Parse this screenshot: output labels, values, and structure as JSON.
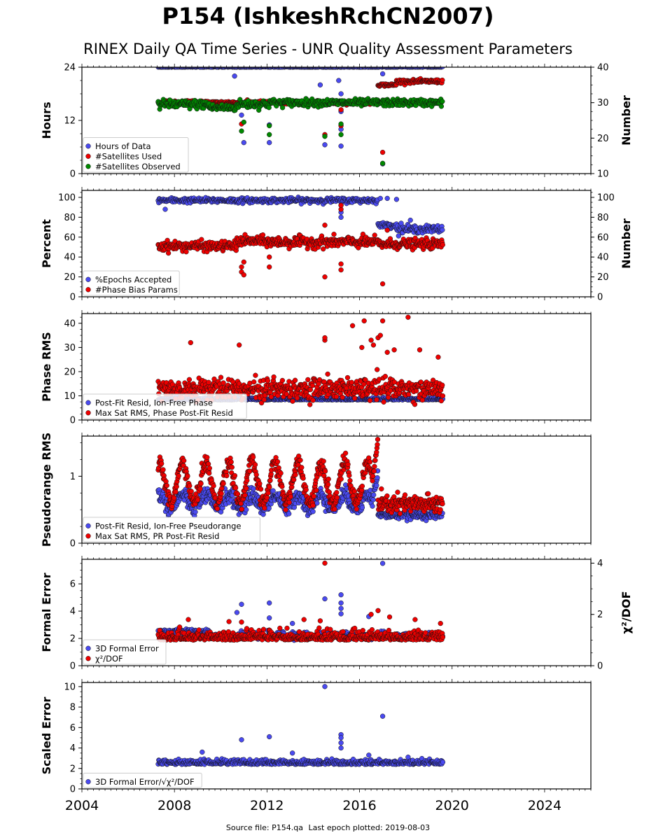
{
  "title": "P154 (IshkeshRchCN2007)",
  "subtitle": "RINEX Daily QA Time Series - UNR Quality Assessment Parameters",
  "footer": {
    "source_label": "Source file: P154.qa",
    "last_epoch_label": "Last epoch plotted: 2019-08-03"
  },
  "colors": {
    "blue": "#4a4af0",
    "red": "#ee0000",
    "green": "#008800",
    "dark_red": "#550000",
    "navy": "#101040"
  },
  "chart_data": [
    {
      "type": "scatter",
      "ylabel": "Hours",
      "ylabel_right": "Number",
      "xlim": [
        2004,
        2026
      ],
      "ylim": [
        0,
        24
      ],
      "ylim_right": [
        10,
        40
      ],
      "yticks": [
        0,
        12,
        24
      ],
      "yticks_right": [
        10,
        20,
        30,
        40
      ],
      "legend": [
        "Hours of Data",
        "#Satellites Used",
        "#Satellites Observed"
      ],
      "legend_placement": "lower-left",
      "data_range": [
        2007.3,
        2019.6
      ],
      "series": [
        {
          "name": "Hours of Data",
          "axis": "left",
          "color": "blue",
          "base": 24,
          "spread": 0.2,
          "outliers": [
            [
              2010.9,
              13.2
            ],
            [
              2011.0,
              7.0
            ],
            [
              2012.1,
              7.0
            ],
            [
              2012.1,
              11.0
            ],
            [
              2014.5,
              6.5
            ],
            [
              2015.2,
              6.2
            ],
            [
              2015.2,
              10.0
            ],
            [
              2015.2,
              14.0
            ],
            [
              2015.2,
              18.0
            ],
            [
              2015.1,
              21.0
            ],
            [
              2014.3,
              20.0
            ],
            [
              2010.6,
              22.0
            ],
            [
              2017.0,
              22.5
            ],
            [
              2017.0,
              2.2
            ]
          ]
        },
        {
          "name": "#Satellites Used",
          "axis": "right",
          "color": "red",
          "segments": [
            [
              2007.3,
              2016.8,
              30,
              0.4
            ],
            [
              2016.8,
              2017.6,
              35,
              0.3
            ],
            [
              2017.6,
              2019.6,
              36,
              0.4
            ]
          ],
          "outliers": [
            [
              2010.9,
              24.0
            ],
            [
              2014.5,
              21.0
            ],
            [
              2015.2,
              23.5
            ],
            [
              2015.2,
              28.0
            ],
            [
              2017.0,
              16.0
            ]
          ]
        },
        {
          "name": "#Satellites Observed",
          "axis": "right",
          "color": "green",
          "segments": [
            [
              2007.3,
              2009.5,
              29.5,
              1.0
            ],
            [
              2009.5,
              2010.7,
              28.6,
              0.8
            ],
            [
              2010.7,
              2012.1,
              29.6,
              1.0
            ],
            [
              2012.1,
              2019.6,
              30.0,
              0.8
            ]
          ],
          "outliers": [
            [
              2010.9,
              22.0
            ],
            [
              2011.0,
              24.5
            ],
            [
              2012.1,
              21.0
            ],
            [
              2012.1,
              23.5
            ],
            [
              2014.5,
              20.5
            ],
            [
              2015.2,
              21.0
            ],
            [
              2015.2,
              24.0
            ],
            [
              2017.0,
              12.9
            ]
          ]
        }
      ]
    },
    {
      "type": "scatter",
      "ylabel": "Percent",
      "ylabel_right": "Number",
      "xlim": [
        2004,
        2026
      ],
      "ylim": [
        0,
        107
      ],
      "ylim_right": [
        0,
        107
      ],
      "yticks": [
        0,
        20,
        40,
        60,
        80,
        100
      ],
      "yticks_right": [
        0,
        20,
        40,
        60,
        80,
        100
      ],
      "legend": [
        "%Epochs Accepted",
        "#Phase Bias Params"
      ],
      "legend_placement": "lower-left",
      "data_range": [
        2007.3,
        2019.6
      ],
      "series": [
        {
          "name": "%Epochs Accepted",
          "axis": "left",
          "color": "blue",
          "segments": [
            [
              2007.3,
              2016.8,
              97,
              2.0
            ],
            [
              2016.8,
              2017.6,
              72,
              2.0
            ],
            [
              2017.6,
              2019.6,
              68,
              3.0
            ]
          ],
          "outliers": [
            [
              2007.6,
              88
            ],
            [
              2015.2,
              92
            ],
            [
              2015.2,
              85
            ],
            [
              2015.2,
              80
            ],
            [
              2016.9,
              99
            ],
            [
              2017.2,
              99
            ],
            [
              2017.6,
              98
            ],
            [
              2018.2,
              77
            ],
            [
              2017.8,
              74
            ]
          ]
        },
        {
          "name": "#Phase Bias Params",
          "axis": "right",
          "color": "red",
          "segments": [
            [
              2007.3,
              2010.7,
              51,
              4.0
            ],
            [
              2010.7,
              2012.1,
              56,
              4.0
            ],
            [
              2012.1,
              2016.8,
              55,
              4.5
            ],
            [
              2016.8,
              2019.6,
              53,
              4.0
            ]
          ],
          "outliers": [
            [
              2010.9,
              30
            ],
            [
              2010.9,
              25
            ],
            [
              2011.0,
              22
            ],
            [
              2011.0,
              35
            ],
            [
              2012.1,
              30
            ],
            [
              2012.1,
              40
            ],
            [
              2014.5,
              20
            ],
            [
              2014.5,
              72
            ],
            [
              2015.2,
              27
            ],
            [
              2015.2,
              33
            ],
            [
              2015.2,
              88
            ],
            [
              2015.2,
              92
            ],
            [
              2017.0,
              13
            ],
            [
              2017.2,
              67
            ]
          ]
        }
      ]
    },
    {
      "type": "scatter",
      "ylabel": "Phase RMS",
      "xlim": [
        2004,
        2026
      ],
      "ylim": [
        0,
        44
      ],
      "yticks": [
        0,
        10,
        20,
        30,
        40
      ],
      "legend": [
        "Post-Fit Resid, Ion-Free Phase",
        "Max Sat RMS, Phase Post-Fit Resid"
      ],
      "legend_placement": "lower-left",
      "data_range": [
        2007.3,
        2019.6
      ],
      "series": [
        {
          "name": "Post-Fit Resid, Ion-Free Phase",
          "axis": "left",
          "color": "blue",
          "base": 8.3,
          "spread": 0.7,
          "outliers": []
        },
        {
          "name": "Max Sat RMS, Phase Post-Fit Resid",
          "axis": "left",
          "color": "red",
          "base": 13,
          "spread": 4.0,
          "outliers": [
            [
              2008.7,
              32
            ],
            [
              2010.8,
              31
            ],
            [
              2014.5,
              33
            ],
            [
              2014.5,
              34
            ],
            [
              2015.7,
              39
            ],
            [
              2016.1,
              30
            ],
            [
              2016.2,
              41
            ],
            [
              2016.5,
              33
            ],
            [
              2016.6,
              31
            ],
            [
              2016.8,
              34
            ],
            [
              2016.9,
              35
            ],
            [
              2017.0,
              41
            ],
            [
              2017.2,
              28
            ],
            [
              2017.5,
              29
            ],
            [
              2018.1,
              42.5
            ],
            [
              2018.6,
              29
            ],
            [
              2019.4,
              26
            ]
          ]
        }
      ]
    },
    {
      "type": "scatter",
      "ylabel": "Pseudorange RMS",
      "xlim": [
        2004,
        2026
      ],
      "ylim": [
        0,
        1.6
      ],
      "yticks": [
        0,
        1
      ],
      "legend": [
        "Post-Fit Resid, Ion-Free Pseudorange",
        "Max Sat RMS, PR Post-Fit Resid"
      ],
      "legend_placement": "lower-left",
      "data_range": [
        2007.3,
        2019.6
      ],
      "seasonal_break": 2016.8,
      "series": [
        {
          "name": "Post-Fit Resid, Ion-Free Pseudorange",
          "axis": "left",
          "color": "blue",
          "seasonal": {
            "before": [
              0.62,
              0.1
            ],
            "after": [
              0.42,
              0.02
            ],
            "peak": [
              2016.78,
              1.05
            ]
          },
          "outliers": []
        },
        {
          "name": "Max Sat RMS, PR Post-Fit Resid",
          "axis": "left",
          "color": "red",
          "seasonal": {
            "before": [
              0.9,
              0.3
            ],
            "after": [
              0.58,
              0.05
            ],
            "peak": [
              2016.78,
              1.55
            ]
          },
          "outliers": []
        }
      ]
    },
    {
      "type": "scatter",
      "ylabel": "Formal Error",
      "ylabel_right": "χ²/DOF",
      "xlim": [
        2004,
        2026
      ],
      "ylim": [
        0,
        7.8
      ],
      "ylim_right": [
        0,
        4.15
      ],
      "yticks": [
        0,
        2,
        4,
        6
      ],
      "yticks_right": [
        0,
        2,
        4
      ],
      "legend": [
        "3D Formal Error",
        "χ²/DOF"
      ],
      "legend_placement": "lower-left",
      "data_range": [
        2007.3,
        2019.6
      ],
      "series": [
        {
          "name": "3D Formal Error",
          "axis": "left",
          "color": "blue",
          "segments": [
            [
              2007.3,
              2009.5,
              2.5,
              0.15
            ],
            [
              2009.5,
              2019.6,
              2.2,
              0.2
            ]
          ],
          "outliers": [
            [
              2010.7,
              3.9
            ],
            [
              2010.9,
              4.5
            ],
            [
              2012.1,
              4.6
            ],
            [
              2012.1,
              3.5
            ],
            [
              2014.5,
              4.9
            ],
            [
              2015.2,
              5.2
            ],
            [
              2015.2,
              4.6
            ],
            [
              2015.2,
              4.2
            ],
            [
              2015.2,
              3.8
            ],
            [
              2017.0,
              7.5
            ],
            [
              2013.1,
              3.1
            ],
            [
              2016.4,
              3.6
            ]
          ]
        },
        {
          "name": "χ²/DOF",
          "axis": "right",
          "color": "red",
          "base": 1.0,
          "spread": 0.28,
          "outliers": [
            [
              2014.5,
              4.0
            ],
            [
              2008.6,
              1.8
            ],
            [
              2010.9,
              1.7
            ],
            [
              2013.6,
              1.8
            ],
            [
              2014.3,
              1.75
            ],
            [
              2016.5,
              2.0
            ],
            [
              2016.8,
              2.15
            ],
            [
              2017.3,
              1.9
            ],
            [
              2018.4,
              1.8
            ],
            [
              2019.5,
              1.65
            ]
          ]
        }
      ]
    },
    {
      "type": "scatter",
      "ylabel": "Scaled Error",
      "xlim": [
        2004,
        2026
      ],
      "ylim": [
        0,
        10.4
      ],
      "yticks": [
        0,
        2,
        4,
        6,
        8,
        10
      ],
      "xticks": [
        2004,
        2008,
        2012,
        2016,
        2020,
        2024
      ],
      "legend": [
        "3D Formal Error/√χ²/DOF"
      ],
      "legend_placement": "lower-left",
      "data_range": [
        2007.3,
        2019.6
      ],
      "series": [
        {
          "name": "3D Formal Error/√χ²/DOF",
          "axis": "left",
          "color": "blue",
          "base": 2.4,
          "spread": 0.35,
          "outliers": [
            [
              2010.9,
              4.8
            ],
            [
              2012.1,
              5.1
            ],
            [
              2014.5,
              10.0
            ],
            [
              2015.2,
              5.3
            ],
            [
              2015.2,
              5.0
            ],
            [
              2015.2,
              4.5
            ],
            [
              2015.2,
              4.0
            ],
            [
              2017.0,
              7.1
            ],
            [
              2009.2,
              3.6
            ],
            [
              2013.1,
              3.5
            ],
            [
              2016.4,
              3.3
            ],
            [
              2018.1,
              3.1
            ]
          ]
        }
      ]
    }
  ]
}
